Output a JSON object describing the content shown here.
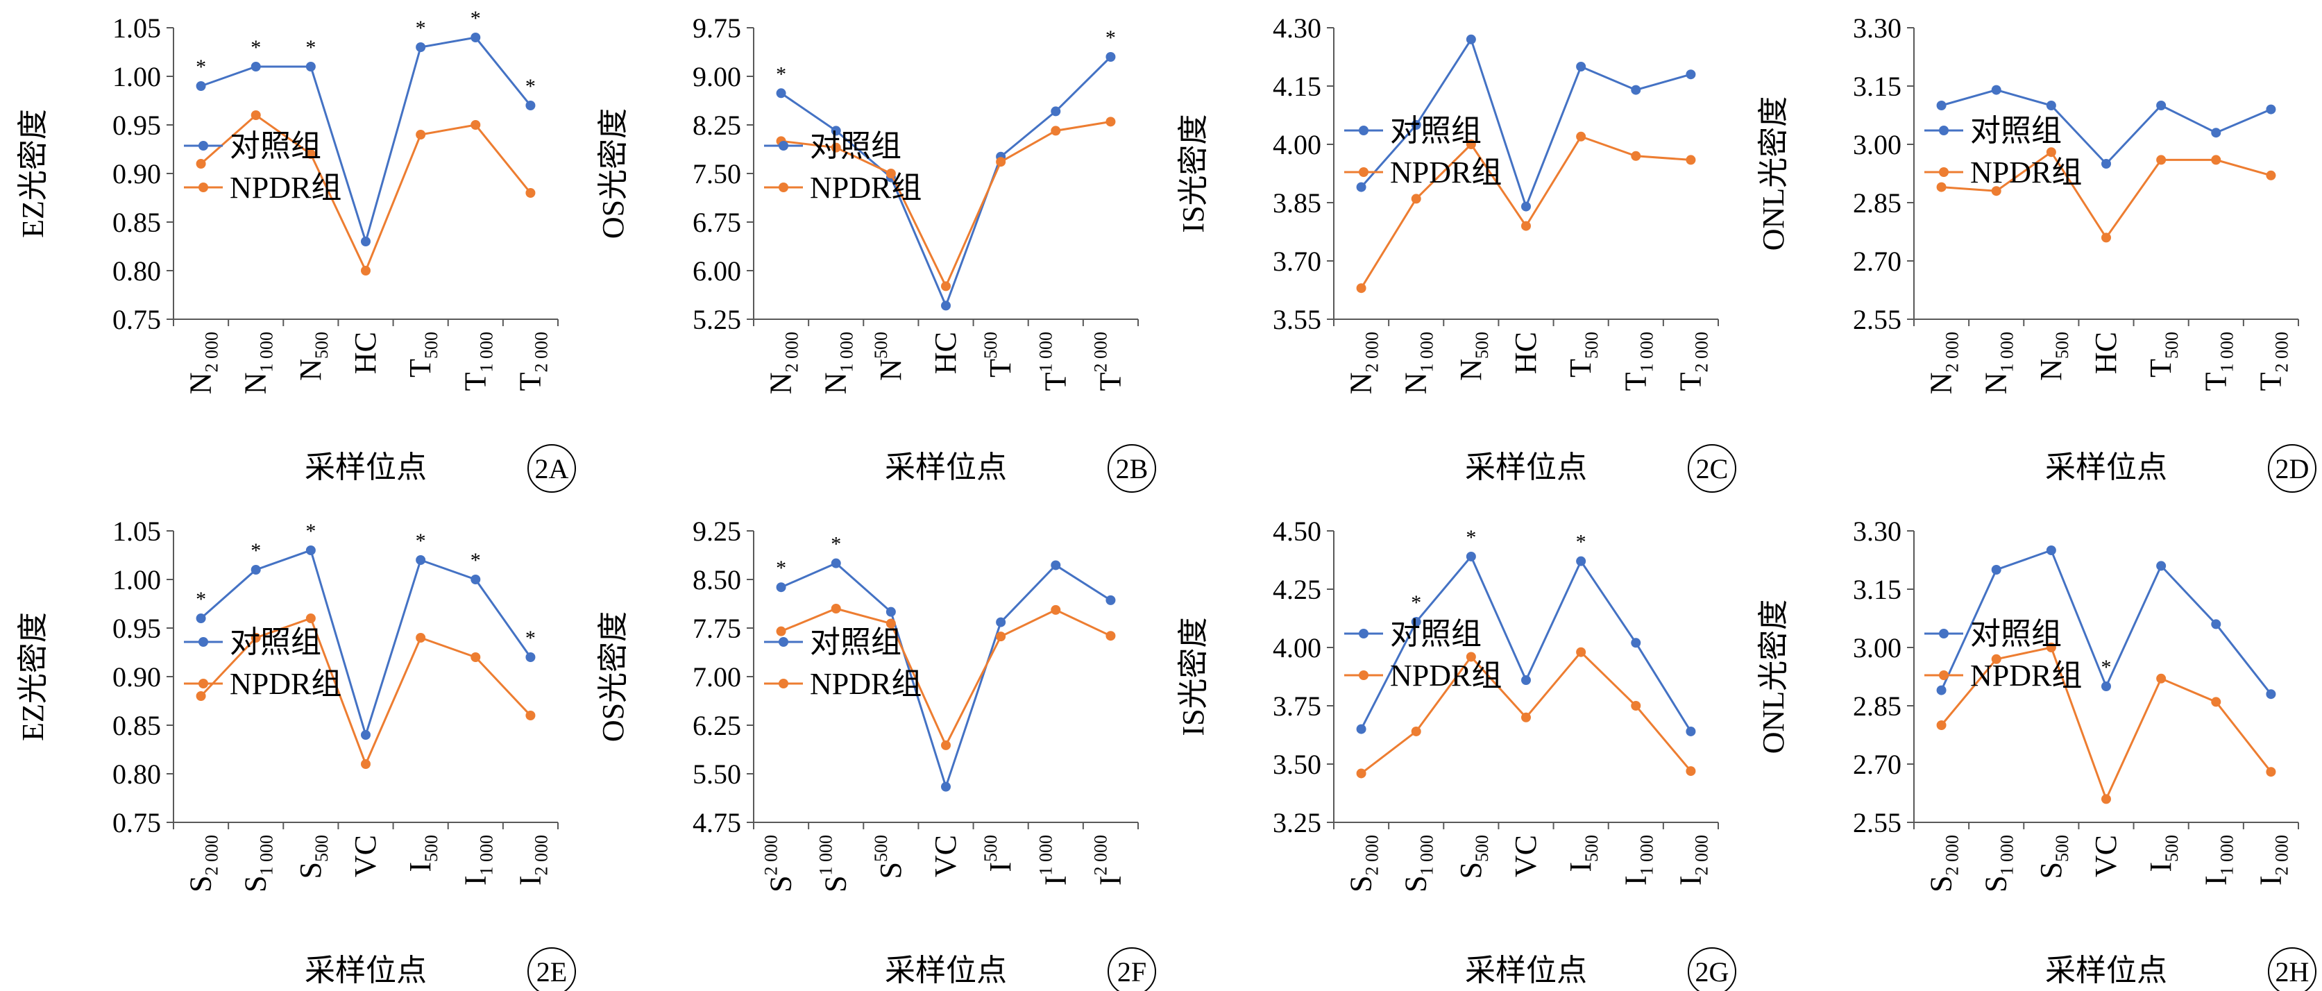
{
  "colors": {
    "control": "#4472C4",
    "npdr": "#ED7D31",
    "axis": "#595959"
  },
  "chart_data": [
    {
      "id": "2A",
      "type": "line",
      "ylabel": "EZ光密度",
      "xlabel": "采样位点",
      "yticks": [
        "1.05",
        "1.00",
        "0.95",
        "0.90",
        "0.85",
        "0.80",
        "0.75"
      ],
      "ylim": [
        0.75,
        1.05
      ],
      "categories": [
        {
          "base": "N",
          "sub": "2 000",
          "sup": ""
        },
        {
          "base": "N",
          "sub": "1 000",
          "sup": ""
        },
        {
          "base": "N",
          "sub": "500",
          "sup": ""
        },
        {
          "base": "HC",
          "sub": "",
          "sup": ""
        },
        {
          "base": "T",
          "sub": "500",
          "sup": ""
        },
        {
          "base": "T",
          "sub": "1 000",
          "sup": ""
        },
        {
          "base": "T",
          "sub": "2 000",
          "sup": ""
        }
      ],
      "series": [
        {
          "name": "对照组",
          "values": [
            0.99,
            1.01,
            1.01,
            0.83,
            1.03,
            1.04,
            0.97
          ]
        },
        {
          "name": "NPDR组",
          "values": [
            0.91,
            0.96,
            0.92,
            0.8,
            0.94,
            0.95,
            0.88
          ]
        }
      ],
      "significant": [
        0,
        1,
        2,
        4,
        5,
        6
      ],
      "marker": "*",
      "legend_top": 170
    },
    {
      "id": "2B",
      "type": "line",
      "ylabel": "OS光密度",
      "xlabel": "采样位点",
      "yticks": [
        "9.75",
        "9.00",
        "8.25",
        "7.50",
        "6.75",
        "6.00",
        "5.25"
      ],
      "ylim": [
        5.25,
        9.75
      ],
      "categories": [
        {
          "base": "N",
          "sub": "2 000",
          "sup": ""
        },
        {
          "base": "N",
          "sub": "1 000",
          "sup": ""
        },
        {
          "base": "N",
          "sub": "",
          "sup": "500"
        },
        {
          "base": "HC",
          "sub": "",
          "sup": ""
        },
        {
          "base": "T",
          "sub": "",
          "sup": "500"
        },
        {
          "base": "T",
          "sub": "",
          "sup": "1 000"
        },
        {
          "base": "T",
          "sub": "",
          "sup": "2 000"
        }
      ],
      "series": [
        {
          "name": "对照组",
          "values": [
            8.74,
            8.16,
            7.44,
            5.46,
            7.76,
            8.46,
            9.3
          ]
        },
        {
          "name": "NPDR组",
          "values": [
            8.0,
            7.9,
            7.5,
            5.76,
            7.68,
            8.16,
            8.3
          ]
        }
      ],
      "significant": [
        0,
        6
      ],
      "marker": "*",
      "legend_top": 170
    },
    {
      "id": "2C",
      "type": "line",
      "ylabel": "IS光密度",
      "xlabel": "采样位点",
      "yticks": [
        "4.30",
        "4.15",
        "4.00",
        "3.85",
        "3.70",
        "3.55"
      ],
      "ylim": [
        3.55,
        4.3
      ],
      "categories": [
        {
          "base": "N",
          "sub": "2 000",
          "sup": ""
        },
        {
          "base": "N",
          "sub": "1 000",
          "sup": ""
        },
        {
          "base": "N",
          "sub": "500",
          "sup": ""
        },
        {
          "base": "HC",
          "sub": "",
          "sup": ""
        },
        {
          "base": "T",
          "sub": "500",
          "sup": ""
        },
        {
          "base": "T",
          "sub": "1 000",
          "sup": ""
        },
        {
          "base": "T",
          "sub": "2 000",
          "sup": ""
        }
      ],
      "series": [
        {
          "name": "对照组",
          "values": [
            3.89,
            4.05,
            4.27,
            3.84,
            4.2,
            4.14,
            4.18
          ]
        },
        {
          "name": "NPDR组",
          "values": [
            3.63,
            3.86,
            4.0,
            3.79,
            4.02,
            3.97,
            3.96
          ]
        }
      ],
      "significant": [],
      "marker": "*",
      "legend_top": 148
    },
    {
      "id": "2D",
      "type": "line",
      "ylabel": "ONL光密度",
      "xlabel": "采样位点",
      "yticks": [
        "3.30",
        "3.15",
        "3.00",
        "2.85",
        "2.70",
        "2.55"
      ],
      "ylim": [
        2.55,
        3.3
      ],
      "categories": [
        {
          "base": "N",
          "sub": "2 000",
          "sup": ""
        },
        {
          "base": "N",
          "sub": "1 000",
          "sup": ""
        },
        {
          "base": "N",
          "sub": "500",
          "sup": ""
        },
        {
          "base": "HC",
          "sub": "",
          "sup": ""
        },
        {
          "base": "T",
          "sub": "500",
          "sup": ""
        },
        {
          "base": "T",
          "sub": "1 000",
          "sup": ""
        },
        {
          "base": "T",
          "sub": "2 000",
          "sup": ""
        }
      ],
      "series": [
        {
          "name": "对照组",
          "values": [
            3.1,
            3.14,
            3.1,
            2.95,
            3.1,
            3.03,
            3.09
          ]
        },
        {
          "name": "NPDR组",
          "values": [
            2.89,
            2.88,
            2.98,
            2.76,
            2.96,
            2.96,
            2.92
          ]
        }
      ],
      "significant": [],
      "marker": "*",
      "legend_top": 148
    },
    {
      "id": "2E",
      "type": "line",
      "ylabel": "EZ光密度",
      "xlabel": "采样位点",
      "yticks": [
        "1.05",
        "1.00",
        "0.95",
        "0.90",
        "0.85",
        "0.80",
        "0.75"
      ],
      "ylim": [
        0.75,
        1.05
      ],
      "categories": [
        {
          "base": "S",
          "sub": "2 000",
          "sup": ""
        },
        {
          "base": "S",
          "sub": "1 000",
          "sup": ""
        },
        {
          "base": "S",
          "sub": "500",
          "sup": ""
        },
        {
          "base": "VC",
          "sub": "",
          "sup": ""
        },
        {
          "base": "I",
          "sub": "500",
          "sup": ""
        },
        {
          "base": "I",
          "sub": "1 000",
          "sup": ""
        },
        {
          "base": "I",
          "sub": "2 000",
          "sup": ""
        }
      ],
      "series": [
        {
          "name": "对照组",
          "values": [
            0.96,
            1.01,
            1.03,
            0.84,
            1.02,
            1.0,
            0.92
          ]
        },
        {
          "name": "NPDR组",
          "values": [
            0.88,
            0.94,
            0.96,
            0.81,
            0.94,
            0.92,
            0.86
          ]
        }
      ],
      "significant": [
        0,
        1,
        2,
        4,
        5,
        6
      ],
      "marker": "*",
      "legend_top": 160
    },
    {
      "id": "2F",
      "type": "line",
      "ylabel": "OS光密度",
      "xlabel": "采样位点",
      "yticks": [
        "9.25",
        "8.50",
        "7.75",
        "7.00",
        "6.25",
        "5.50",
        "4.75"
      ],
      "ylim": [
        4.75,
        9.25
      ],
      "categories": [
        {
          "base": "S",
          "sub": "",
          "sup": "2 000"
        },
        {
          "base": "S",
          "sub": "",
          "sup": "1 000"
        },
        {
          "base": "S",
          "sub": "",
          "sup": "500"
        },
        {
          "base": "VC",
          "sub": "",
          "sup": ""
        },
        {
          "base": "I",
          "sub": "",
          "sup": "500"
        },
        {
          "base": "I",
          "sub": "",
          "sup": "1 000"
        },
        {
          "base": "I",
          "sub": "",
          "sup": "2 000"
        }
      ],
      "series": [
        {
          "name": "对照组",
          "values": [
            8.38,
            8.75,
            8.0,
            5.3,
            7.84,
            8.72,
            8.18
          ]
        },
        {
          "name": "NPDR组",
          "values": [
            7.7,
            8.05,
            7.82,
            5.94,
            7.62,
            8.03,
            7.63
          ]
        }
      ],
      "significant": [
        0,
        1
      ],
      "marker": "*",
      "legend_top": 160
    },
    {
      "id": "2G",
      "type": "line",
      "ylabel": "IS光密度",
      "xlabel": "采样位点",
      "yticks": [
        "4.50",
        "4.25",
        "4.00",
        "3.75",
        "3.50",
        "3.25"
      ],
      "ylim": [
        3.25,
        4.5
      ],
      "categories": [
        {
          "base": "S",
          "sub": "2 000",
          "sup": ""
        },
        {
          "base": "S",
          "sub": "1 000",
          "sup": ""
        },
        {
          "base": "S",
          "sub": "500",
          "sup": ""
        },
        {
          "base": "VC",
          "sub": "",
          "sup": ""
        },
        {
          "base": "I",
          "sub": "500",
          "sup": ""
        },
        {
          "base": "I",
          "sub": "1 000",
          "sup": ""
        },
        {
          "base": "I",
          "sub": "2 000",
          "sup": ""
        }
      ],
      "series": [
        {
          "name": "对照组",
          "values": [
            3.65,
            4.11,
            4.39,
            3.86,
            4.37,
            4.02,
            3.64
          ]
        },
        {
          "name": "NPDR组",
          "values": [
            3.46,
            3.64,
            3.96,
            3.7,
            3.98,
            3.75,
            3.47
          ]
        }
      ],
      "significant": [
        1,
        2,
        4
      ],
      "marker": "*",
      "legend_top": 148
    },
    {
      "id": "2H",
      "type": "line",
      "ylabel": "ONL光密度",
      "xlabel": "采样位点",
      "yticks": [
        "3.30",
        "3.15",
        "3.00",
        "2.85",
        "2.70",
        "2.55"
      ],
      "ylim": [
        2.55,
        3.3
      ],
      "categories": [
        {
          "base": "S",
          "sub": "2 000",
          "sup": ""
        },
        {
          "base": "S",
          "sub": "1 000",
          "sup": ""
        },
        {
          "base": "S",
          "sub": "500",
          "sup": ""
        },
        {
          "base": "VC",
          "sub": "",
          "sup": ""
        },
        {
          "base": "I",
          "sub": "500",
          "sup": ""
        },
        {
          "base": "I",
          "sub": "1 000",
          "sup": ""
        },
        {
          "base": "I",
          "sub": "2 000",
          "sup": ""
        }
      ],
      "series": [
        {
          "name": "对照组",
          "values": [
            2.89,
            3.2,
            3.25,
            2.9,
            3.21,
            3.06,
            2.88
          ]
        },
        {
          "name": "NPDR组",
          "values": [
            2.8,
            2.97,
            3.0,
            2.61,
            2.92,
            2.86,
            2.68
          ]
        }
      ],
      "significant": [
        3
      ],
      "marker": "*",
      "legend_top": 148
    }
  ]
}
